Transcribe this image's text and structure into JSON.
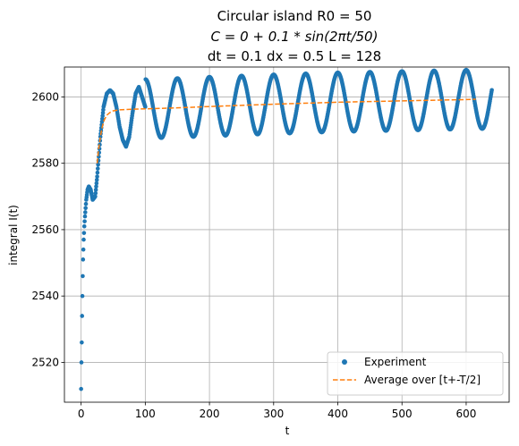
{
  "chart_data": {
    "type": "scatter",
    "title_lines": [
      "Circular island R0 = 50",
      "C = 0 + 0.1 * sin(2πt/50)",
      "dt = 0.1 dx = 0.5 L = 128"
    ],
    "xlabel": "t",
    "ylabel": "integral I(t)",
    "xlim": [
      -26,
      667
    ],
    "ylim": [
      2508,
      2609
    ],
    "xticks": [
      0,
      100,
      200,
      300,
      400,
      500,
      600
    ],
    "yticks": [
      2520,
      2540,
      2560,
      2580,
      2600
    ],
    "grid": true,
    "legend": {
      "placement": "lower right",
      "entries": [
        "Experiment",
        "Average over [t+-T/2]"
      ]
    },
    "series": [
      {
        "name": "Experiment",
        "style": "markers",
        "color": "#1f77b4",
        "model": {
          "description": "oscillation around the running average, period 50, amplitude ~9",
          "period": 50,
          "amplitude": 8.9,
          "t_range": [
            0,
            640
          ]
        },
        "x": [
          0,
          0.5,
          1,
          1.5,
          2,
          2.5,
          3,
          4,
          5,
          6,
          8,
          10,
          12,
          15,
          18,
          22,
          25,
          30,
          35,
          40,
          45,
          50,
          55,
          60,
          65,
          70,
          75,
          80,
          85,
          90,
          95,
          100,
          125,
          150,
          175,
          200,
          225,
          250,
          275,
          300,
          325,
          350,
          375,
          400,
          425,
          450,
          475,
          500,
          525,
          550,
          575,
          600,
          625,
          640
        ],
        "values": [
          2512,
          2520,
          2526,
          2534,
          2540,
          2546,
          2551,
          2557,
          2561,
          2564,
          2569,
          2572,
          2573,
          2572,
          2569,
          2570,
          2576,
          2588,
          2597,
          2601,
          2602,
          2601,
          2597,
          2591,
          2587,
          2585,
          2588,
          2595,
          2601,
          2603,
          2600,
          2597,
          2590,
          2603,
          2590,
          2603,
          2590,
          2603,
          2590,
          2604,
          2590,
          2604,
          2590,
          2604,
          2590,
          2604,
          2590,
          2604,
          2590,
          2604,
          2590,
          2604,
          2590,
          2602
        ]
      },
      {
        "name": "Average over [t+-T/2]",
        "style": "dashed",
        "color": "#ff7f0e",
        "x": [
          25,
          27,
          30,
          33,
          36,
          40,
          45,
          50,
          60,
          80,
          100,
          150,
          200,
          300,
          400,
          500,
          600,
          615
        ],
        "values": [
          2580,
          2584,
          2588,
          2591,
          2593,
          2594.5,
          2595.3,
          2595.8,
          2596.1,
          2596.3,
          2596.4,
          2596.7,
          2597.1,
          2597.8,
          2598.4,
          2598.8,
          2599.2,
          2599.3
        ]
      }
    ]
  }
}
